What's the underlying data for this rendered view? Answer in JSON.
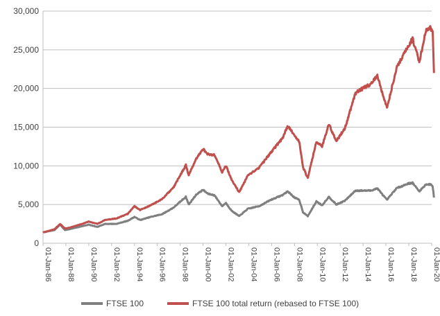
{
  "chart_data": {
    "type": "line",
    "title": "",
    "xlabel": "",
    "ylabel": "",
    "ylim": [
      0,
      30000
    ],
    "xlim": [
      "1986-01-01",
      "2020-01-01"
    ],
    "grid": "horizontal",
    "legend_position": "bottom",
    "y_ticks": [
      {
        "value": 0,
        "label": "0"
      },
      {
        "value": 5000,
        "label": "5,000"
      },
      {
        "value": 10000,
        "label": "10,000"
      },
      {
        "value": 15000,
        "label": "15,000"
      },
      {
        "value": 20000,
        "label": "20,000"
      },
      {
        "value": 25000,
        "label": "25,000"
      },
      {
        "value": 30000,
        "label": "30,000"
      }
    ],
    "x_ticks": [
      {
        "value": "1986-01-01",
        "label": "01-Jan-86"
      },
      {
        "value": "1988-01-01",
        "label": "01-Jan-88"
      },
      {
        "value": "1990-01-01",
        "label": "01-Jan-90"
      },
      {
        "value": "1992-01-01",
        "label": "01-Jan-92"
      },
      {
        "value": "1994-01-01",
        "label": "01-Jan-94"
      },
      {
        "value": "1996-01-01",
        "label": "01-Jan-96"
      },
      {
        "value": "1998-01-01",
        "label": "01-Jan-98"
      },
      {
        "value": "2000-01-01",
        "label": "01-Jan-00"
      },
      {
        "value": "2002-01-01",
        "label": "01-Jan-02"
      },
      {
        "value": "2004-01-01",
        "label": "01-Jan-04"
      },
      {
        "value": "2006-01-01",
        "label": "01-Jan-06"
      },
      {
        "value": "2008-01-01",
        "label": "01-Jan-08"
      },
      {
        "value": "2010-01-01",
        "label": "01-Jan-10"
      },
      {
        "value": "2012-01-01",
        "label": "01-Jan-12"
      },
      {
        "value": "2014-01-01",
        "label": "01-Jan-14"
      },
      {
        "value": "2016-01-01",
        "label": "01-Jan-16"
      },
      {
        "value": "2018-01-01",
        "label": "01-Jan-18"
      },
      {
        "value": "2020-01-01",
        "label": "01-Jan-20"
      }
    ],
    "series": [
      {
        "name": "FTSE 100",
        "color": "#7f7f7f",
        "points": [
          [
            "1986-01-01",
            1400
          ],
          [
            "1987-01-01",
            1700
          ],
          [
            "1987-07-01",
            2400
          ],
          [
            "1987-12-01",
            1700
          ],
          [
            "1988-06-01",
            1850
          ],
          [
            "1989-06-01",
            2200
          ],
          [
            "1990-01-01",
            2400
          ],
          [
            "1990-10-01",
            2100
          ],
          [
            "1991-06-01",
            2500
          ],
          [
            "1992-06-01",
            2500
          ],
          [
            "1993-06-01",
            2900
          ],
          [
            "1994-01-01",
            3400
          ],
          [
            "1994-07-01",
            3000
          ],
          [
            "1995-06-01",
            3400
          ],
          [
            "1996-06-01",
            3750
          ],
          [
            "1997-06-01",
            4600
          ],
          [
            "1998-07-01",
            6000
          ],
          [
            "1998-10-01",
            5000
          ],
          [
            "1999-06-01",
            6300
          ],
          [
            "1999-12-31",
            6900
          ],
          [
            "2000-06-01",
            6400
          ],
          [
            "2001-01-01",
            6200
          ],
          [
            "2001-09-01",
            4800
          ],
          [
            "2002-01-01",
            5200
          ],
          [
            "2002-07-01",
            4200
          ],
          [
            "2003-03-01",
            3500
          ],
          [
            "2003-12-01",
            4450
          ],
          [
            "2004-12-01",
            4800
          ],
          [
            "2005-12-01",
            5600
          ],
          [
            "2006-12-01",
            6200
          ],
          [
            "2007-06-01",
            6700
          ],
          [
            "2008-01-01",
            5900
          ],
          [
            "2008-06-01",
            5600
          ],
          [
            "2008-10-01",
            4000
          ],
          [
            "2009-03-01",
            3500
          ],
          [
            "2009-12-01",
            5400
          ],
          [
            "2010-06-01",
            4900
          ],
          [
            "2011-01-01",
            6000
          ],
          [
            "2011-09-01",
            5000
          ],
          [
            "2012-06-01",
            5500
          ],
          [
            "2013-05-01",
            6800
          ],
          [
            "2014-09-01",
            6800
          ],
          [
            "2015-04-01",
            7100
          ],
          [
            "2016-02-01",
            5600
          ],
          [
            "2016-12-01",
            7100
          ],
          [
            "2017-12-01",
            7700
          ],
          [
            "2018-05-01",
            7800
          ],
          [
            "2018-12-01",
            6700
          ],
          [
            "2019-07-01",
            7600
          ],
          [
            "2019-12-01",
            7600
          ],
          [
            "2020-02-01",
            7400
          ],
          [
            "2020-03-15",
            5900
          ]
        ]
      },
      {
        "name": "FTSE 100 total return (rebased to FTSE 100)",
        "color": "#c0504d",
        "points": [
          [
            "1986-01-01",
            1400
          ],
          [
            "1987-01-01",
            1800
          ],
          [
            "1987-07-01",
            2500
          ],
          [
            "1987-12-01",
            1900
          ],
          [
            "1988-06-01",
            2050
          ],
          [
            "1989-06-01",
            2500
          ],
          [
            "1990-01-01",
            2800
          ],
          [
            "1990-10-01",
            2500
          ],
          [
            "1991-06-01",
            3000
          ],
          [
            "1992-06-01",
            3200
          ],
          [
            "1993-06-01",
            3800
          ],
          [
            "1994-01-01",
            4800
          ],
          [
            "1994-07-01",
            4300
          ],
          [
            "1995-06-01",
            4900
          ],
          [
            "1996-06-01",
            5700
          ],
          [
            "1997-06-01",
            7200
          ],
          [
            "1998-07-01",
            10100
          ],
          [
            "1998-10-01",
            8800
          ],
          [
            "1999-06-01",
            10900
          ],
          [
            "1999-12-31",
            12200
          ],
          [
            "2000-06-01",
            11500
          ],
          [
            "2001-01-01",
            11400
          ],
          [
            "2001-09-01",
            9200
          ],
          [
            "2002-01-01",
            10000
          ],
          [
            "2002-07-01",
            8200
          ],
          [
            "2003-03-01",
            6600
          ],
          [
            "2003-12-01",
            8700
          ],
          [
            "2004-12-01",
            9800
          ],
          [
            "2005-12-01",
            11700
          ],
          [
            "2006-12-01",
            13500
          ],
          [
            "2007-06-01",
            15100
          ],
          [
            "2008-01-01",
            14000
          ],
          [
            "2008-06-01",
            13100
          ],
          [
            "2008-10-01",
            9800
          ],
          [
            "2009-03-01",
            8400
          ],
          [
            "2009-12-01",
            13200
          ],
          [
            "2010-06-01",
            12500
          ],
          [
            "2011-01-01",
            15400
          ],
          [
            "2011-09-01",
            13200
          ],
          [
            "2012-06-01",
            14900
          ],
          [
            "2013-05-01",
            19400
          ],
          [
            "2014-09-01",
            20600
          ],
          [
            "2015-04-01",
            21600
          ],
          [
            "2016-02-01",
            17500
          ],
          [
            "2016-12-01",
            22600
          ],
          [
            "2017-12-01",
            25400
          ],
          [
            "2018-05-01",
            26400
          ],
          [
            "2018-12-01",
            23500
          ],
          [
            "2019-07-01",
            27400
          ],
          [
            "2019-12-01",
            27800
          ],
          [
            "2020-02-01",
            27500
          ],
          [
            "2020-03-15",
            22000
          ]
        ]
      }
    ]
  }
}
